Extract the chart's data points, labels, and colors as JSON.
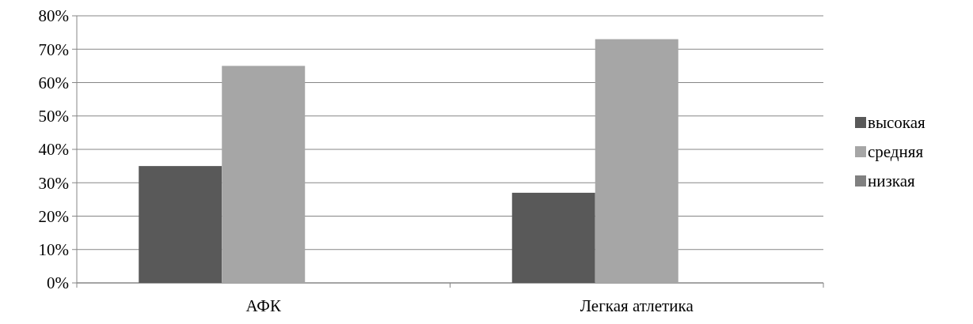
{
  "chart_data": {
    "type": "bar",
    "categories": [
      "АФК",
      "Легкая атлетика"
    ],
    "series": [
      {
        "name": "высокая",
        "color": "#595959",
        "values": [
          35,
          27
        ]
      },
      {
        "name": "средняя",
        "color": "#a6a6a6",
        "values": [
          65,
          73
        ]
      },
      {
        "name": "низкая",
        "color": "#808080",
        "values": [
          0,
          0
        ]
      }
    ],
    "ylim": [
      0,
      80
    ],
    "yticks": [
      {
        "value": 0,
        "label": "0%"
      },
      {
        "value": 10,
        "label": "10%"
      },
      {
        "value": 20,
        "label": "20%"
      },
      {
        "value": 30,
        "label": "30%"
      },
      {
        "value": 40,
        "label": "40%"
      },
      {
        "value": 50,
        "label": "50%"
      },
      {
        "value": 60,
        "label": "60%"
      },
      {
        "value": 70,
        "label": "70%"
      },
      {
        "value": 80,
        "label": "80%"
      }
    ],
    "grid": "y",
    "legend": "right"
  }
}
